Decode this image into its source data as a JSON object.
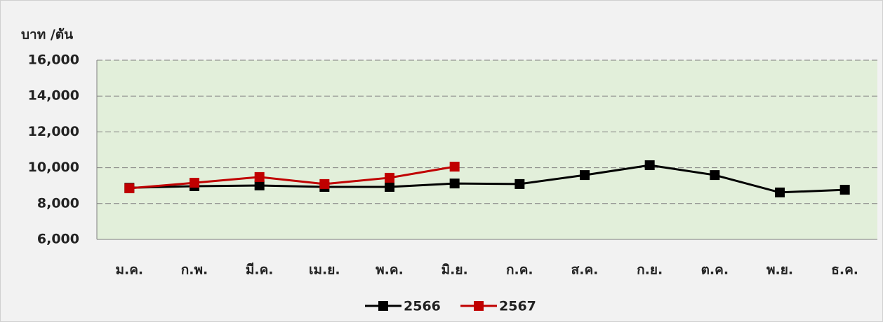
{
  "chart_data": {
    "type": "line",
    "y_axis_label": "บาท /ตัน",
    "categories": [
      "ม.ค.",
      "ก.พ.",
      "มี.ค.",
      "เม.ย.",
      "พ.ค.",
      "มิ.ย.",
      "ก.ค.",
      "ส.ค.",
      "ก.ย.",
      "ต.ค.",
      "พ.ย.",
      "ธ.ค."
    ],
    "series": [
      {
        "name": "2566",
        "color": "#000000",
        "values": [
          8880,
          8970,
          9010,
          8930,
          8930,
          9120,
          9090,
          9590,
          10140,
          9590,
          8620,
          8770
        ]
      },
      {
        "name": "2567",
        "color": "#c00000",
        "values": [
          8850,
          9160,
          9480,
          9090,
          9440,
          10060,
          null,
          null,
          null,
          null,
          null,
          null
        ]
      }
    ],
    "ylim": [
      6000,
      16000
    ],
    "yticks": [
      {
        "value": 6000,
        "label": "6,000"
      },
      {
        "value": 8000,
        "label": "8,000"
      },
      {
        "value": 10000,
        "label": "10,000"
      },
      {
        "value": 12000,
        "label": "12,000"
      },
      {
        "value": 14000,
        "label": "14,000"
      },
      {
        "value": 16000,
        "label": "16,000"
      }
    ],
    "grid": true,
    "plot_background": "#e2efda",
    "legend": "bottom"
  }
}
